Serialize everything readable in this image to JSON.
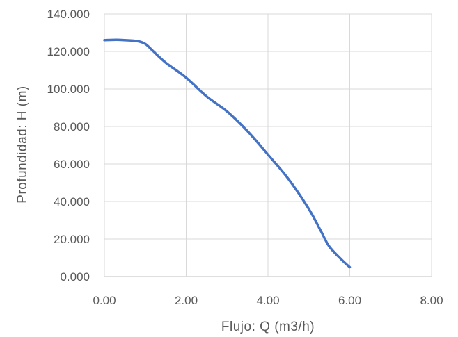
{
  "chart_data": {
    "type": "line",
    "title": "",
    "xlabel": "Flujo: Q (m3/h)",
    "ylabel": "Profundidad: H (m)",
    "xlim": [
      0,
      8
    ],
    "ylim": [
      0,
      140
    ],
    "x_ticks": [
      "0.00",
      "2.00",
      "4.00",
      "6.00",
      "8.00"
    ],
    "y_ticks": [
      "0.000",
      "20.000",
      "40.000",
      "60.000",
      "80.000",
      "100.000",
      "120.000",
      "140.000"
    ],
    "grid": true,
    "legend": "none",
    "series": [
      {
        "color": "#4472c4",
        "x": [
          0.0,
          0.3,
          0.5,
          0.8,
          1.0,
          1.2,
          1.5,
          2.0,
          2.5,
          3.0,
          3.5,
          4.0,
          4.5,
          5.0,
          5.3,
          5.5,
          5.8,
          6.0
        ],
        "y": [
          126,
          126.2,
          126,
          125.5,
          124,
          120,
          114,
          106,
          96,
          88,
          77.5,
          65,
          52,
          36,
          24,
          16,
          9,
          5
        ]
      }
    ]
  }
}
